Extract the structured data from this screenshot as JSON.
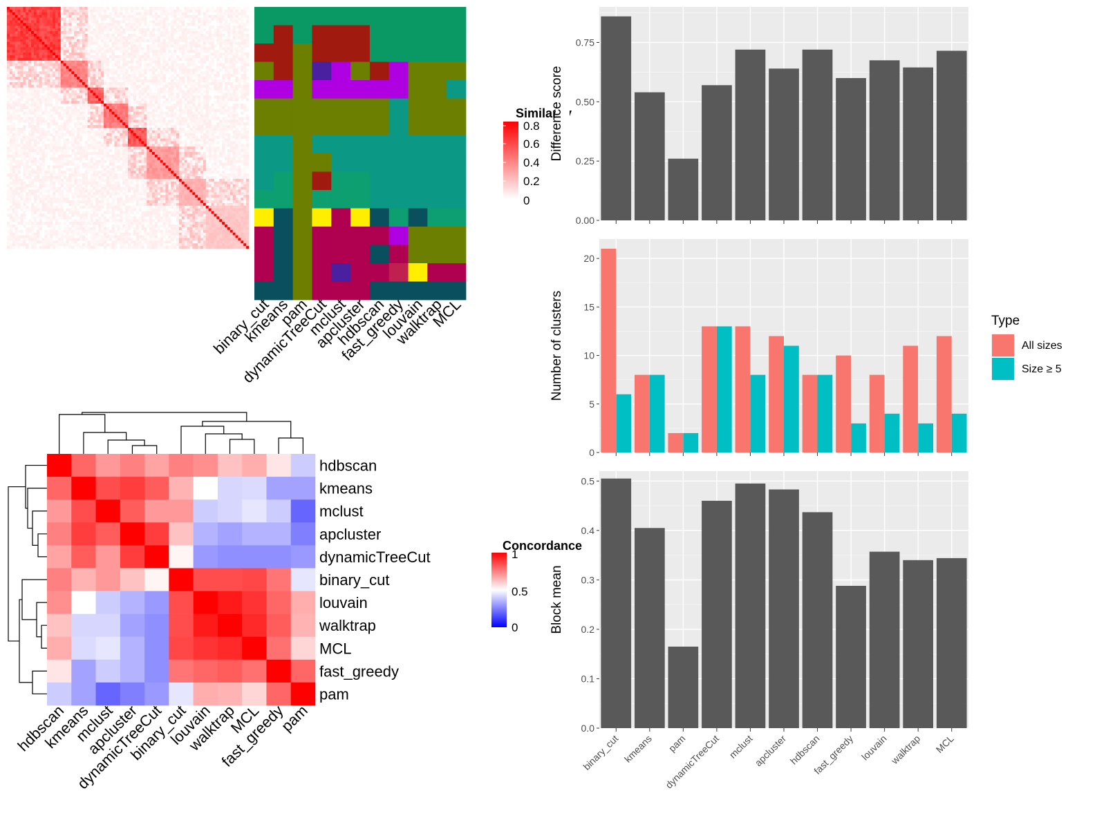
{
  "sim_heatmap": {
    "legend_title": "Similarity",
    "legend_ticks": [
      "0.8",
      "0.6",
      "0.4",
      "0.2",
      "0"
    ],
    "method_labels": [
      "binary_cut",
      "kmeans",
      "pam",
      "dynamicTreeCut",
      "mclust",
      "apcluster",
      "hdbscan",
      "fast_greedy",
      "louvain",
      "walktrap",
      "MCL"
    ]
  },
  "conc_heatmap": {
    "legend_title": "Concordance",
    "legend_ticks": [
      "1",
      "0.5",
      "0"
    ],
    "colors": {
      "high": "#ff0000",
      "mid": "#ffffff",
      "low": "#0000ff"
    },
    "labels": [
      "hdbscan",
      "kmeans",
      "mclust",
      "apcluster",
      "dynamicTreeCut",
      "binary_cut",
      "louvain",
      "walktrap",
      "MCL",
      "fast_greedy",
      "pam"
    ]
  },
  "chart_data": [
    {
      "type": "bar",
      "categories": [
        "binary_cut",
        "kmeans",
        "pam",
        "dynamicTreeCut",
        "mclust",
        "apcluster",
        "hdbscan",
        "fast_greedy",
        "louvain",
        "walktrap",
        "MCL"
      ],
      "values": [
        0.86,
        0.54,
        0.26,
        0.57,
        0.72,
        0.64,
        0.72,
        0.6,
        0.675,
        0.645,
        0.715
      ],
      "ylabel": "Difference score",
      "ylim": [
        0,
        0.9
      ],
      "yticks": [
        "0.00",
        "0.25",
        "0.50",
        "0.75"
      ],
      "ytick_values": [
        0,
        0.25,
        0.5,
        0.75
      ],
      "color": "#595959",
      "grid": true
    },
    {
      "type": "bar",
      "categories": [
        "binary_cut",
        "kmeans",
        "pam",
        "dynamicTreeCut",
        "mclust",
        "apcluster",
        "hdbscan",
        "fast_greedy",
        "louvain",
        "walktrap",
        "MCL"
      ],
      "series": [
        {
          "name": "All sizes",
          "values": [
            21,
            8,
            2,
            13,
            13,
            12,
            8,
            10,
            8,
            11,
            12
          ],
          "color": "#F8766D"
        },
        {
          "name": "Size ≥ 5",
          "values": [
            6,
            8,
            2,
            13,
            8,
            11,
            8,
            3,
            4,
            3,
            4
          ],
          "color": "#00BFC4"
        }
      ],
      "ylabel": "Number of clusters",
      "ylim": [
        0,
        22
      ],
      "yticks": [
        "0",
        "5",
        "10",
        "15",
        "20"
      ],
      "ytick_values": [
        0,
        5,
        10,
        15,
        20
      ],
      "legend_title": "Type",
      "legend_position": "right",
      "grid": true
    },
    {
      "type": "bar",
      "categories": [
        "binary_cut",
        "kmeans",
        "pam",
        "dynamicTreeCut",
        "mclust",
        "apcluster",
        "hdbscan",
        "fast_greedy",
        "louvain",
        "walktrap",
        "MCL"
      ],
      "values": [
        0.505,
        0.405,
        0.165,
        0.46,
        0.495,
        0.483,
        0.437,
        0.288,
        0.357,
        0.34,
        0.344
      ],
      "ylabel": "Block mean",
      "ylim": [
        0,
        0.52
      ],
      "yticks": [
        "0.0",
        "0.1",
        "0.2",
        "0.3",
        "0.4",
        "0.5"
      ],
      "ytick_values": [
        0,
        0.1,
        0.2,
        0.3,
        0.4,
        0.5
      ],
      "color": "#595959",
      "grid": true
    }
  ],
  "concordance_matrix": [
    [
      1.0,
      0.8,
      0.7,
      0.75,
      0.68,
      0.75,
      0.72,
      0.62,
      0.66,
      0.55,
      0.4
    ],
    [
      0.8,
      1.0,
      0.85,
      0.88,
      0.82,
      0.65,
      0.5,
      0.42,
      0.43,
      0.32,
      0.32
    ],
    [
      0.7,
      0.85,
      1.0,
      0.82,
      0.7,
      0.7,
      0.4,
      0.42,
      0.45,
      0.4,
      0.2
    ],
    [
      0.75,
      0.88,
      0.82,
      1.0,
      0.88,
      0.62,
      0.35,
      0.32,
      0.35,
      0.35,
      0.25
    ],
    [
      0.68,
      0.82,
      0.7,
      0.88,
      1.0,
      0.52,
      0.3,
      0.28,
      0.28,
      0.28,
      0.3
    ],
    [
      0.75,
      0.65,
      0.7,
      0.62,
      0.52,
      1.0,
      0.85,
      0.85,
      0.86,
      0.77,
      0.45
    ],
    [
      0.72,
      0.5,
      0.4,
      0.35,
      0.3,
      0.85,
      1.0,
      0.95,
      0.9,
      0.8,
      0.66
    ],
    [
      0.62,
      0.42,
      0.42,
      0.32,
      0.28,
      0.85,
      0.95,
      1.0,
      0.92,
      0.82,
      0.65
    ],
    [
      0.66,
      0.43,
      0.45,
      0.35,
      0.28,
      0.86,
      0.9,
      0.92,
      1.0,
      0.78,
      0.58
    ],
    [
      0.55,
      0.32,
      0.4,
      0.35,
      0.28,
      0.77,
      0.8,
      0.82,
      0.78,
      1.0,
      0.8
    ],
    [
      0.4,
      0.32,
      0.2,
      0.25,
      0.3,
      0.45,
      0.66,
      0.65,
      0.58,
      0.8,
      1.0
    ]
  ],
  "similarity_blocks": [
    {
      "size": 20,
      "value": 0.85
    },
    {
      "size": 10,
      "value": 0.55
    },
    {
      "size": 6,
      "value": 0.7
    },
    {
      "size": 9,
      "value": 0.6
    },
    {
      "size": 7,
      "value": 0.75
    },
    {
      "size": 12,
      "value": 0.45
    },
    {
      "size": 10,
      "value": 0.35
    },
    {
      "size": 16,
      "value": 0.25
    }
  ],
  "cluster_palette": [
    "#0a9965",
    "#a01a10",
    "#6d7f00",
    "#ae00e0",
    "#0b9985",
    "#0d9f70",
    "#b00050",
    "#0a4f5e",
    "#ffee00",
    "#4a1fa0",
    "#c02050"
  ],
  "cluster_rows": [
    [
      0,
      0,
      0,
      0,
      0,
      0,
      0,
      0,
      0,
      0,
      0
    ],
    [
      0,
      1,
      0,
      1,
      1,
      1,
      0,
      0,
      0,
      0,
      0
    ],
    [
      1,
      1,
      2,
      1,
      1,
      1,
      0,
      0,
      0,
      0,
      0
    ],
    [
      2,
      1,
      2,
      9,
      3,
      2,
      1,
      3,
      2,
      2,
      2
    ],
    [
      3,
      3,
      2,
      3,
      3,
      3,
      3,
      3,
      2,
      2,
      4
    ],
    [
      2,
      2,
      2,
      2,
      2,
      2,
      2,
      4,
      2,
      2,
      2
    ],
    [
      2,
      2,
      2,
      2,
      2,
      2,
      2,
      4,
      2,
      2,
      2
    ],
    [
      4,
      4,
      2,
      4,
      4,
      4,
      4,
      4,
      4,
      4,
      4
    ],
    [
      4,
      4,
      2,
      2,
      4,
      4,
      4,
      4,
      4,
      4,
      4
    ],
    [
      4,
      5,
      2,
      1,
      5,
      5,
      4,
      4,
      4,
      4,
      4
    ],
    [
      5,
      5,
      2,
      5,
      5,
      5,
      4,
      4,
      4,
      4,
      4
    ],
    [
      8,
      7,
      2,
      8,
      6,
      8,
      7,
      5,
      7,
      5,
      5
    ],
    [
      6,
      7,
      2,
      6,
      6,
      6,
      6,
      3,
      2,
      2,
      2
    ],
    [
      6,
      7,
      2,
      6,
      6,
      6,
      7,
      6,
      2,
      2,
      2
    ],
    [
      6,
      7,
      2,
      6,
      9,
      6,
      6,
      10,
      8,
      6,
      6
    ],
    [
      7,
      7,
      2,
      6,
      6,
      6,
      7,
      7,
      7,
      7,
      7
    ]
  ]
}
